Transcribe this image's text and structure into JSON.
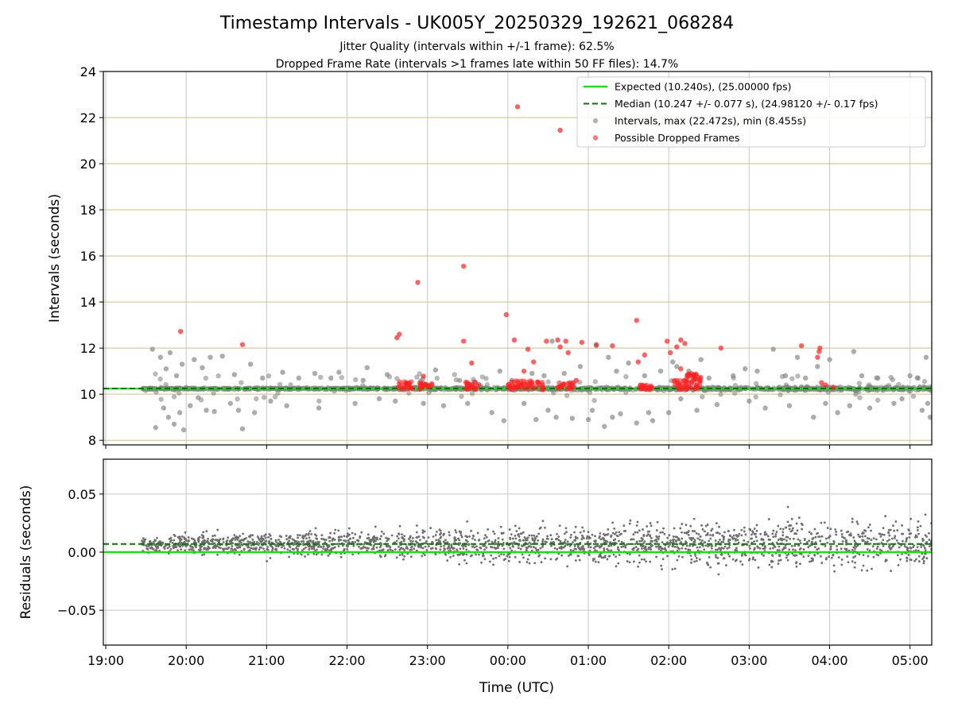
{
  "figure": {
    "title": "Timestamp Intervals - UK005Y_20250329_192621_068284",
    "subtitle_lines": [
      "Jitter Quality (intervals within +/-1 frame): 62.5%",
      "Dropped Frame Rate (intervals >1 frames late within 50 FF files): 14.7%"
    ]
  },
  "chart_data": [
    {
      "type": "scatter",
      "panel": "top",
      "ylabel": "Intervals (seconds)",
      "ylim": [
        7.8,
        24
      ],
      "yticks": [
        8,
        10,
        12,
        14,
        16,
        18,
        20,
        22,
        24
      ],
      "ytick_labels": [
        "8",
        "10",
        "12",
        "14",
        "16",
        "18",
        "20",
        "22",
        "24"
      ],
      "xlim": [
        -0.03,
        10.27
      ],
      "xticks": [
        0,
        1,
        2,
        3,
        4,
        5,
        6,
        7,
        8,
        9,
        10
      ],
      "xtick_labels": [
        "19:00",
        "20:00",
        "21:00",
        "22:00",
        "23:00",
        "00:00",
        "01:00",
        "02:00",
        "03:00",
        "04:00",
        "05:00"
      ],
      "x_units": "hours since 19:00 UTC",
      "grid": true,
      "legend_position": "top-right",
      "colors": {
        "expected": "#00ee00",
        "median": "#007a00",
        "intervals": "#808080",
        "dropped": "#ff2020",
        "hgrid": "#d4bf7a",
        "vgrid": "#c8c8c8"
      },
      "lines": [
        {
          "name": "Expected (10.240s), (25.00000 fps)",
          "y": 10.24,
          "style": "solid"
        },
        {
          "name": "Median (10.247 +/- 0.077 s), (24.98120 +/- 0.17 fps)",
          "y": 10.247,
          "style": "dashed"
        }
      ],
      "series": [
        {
          "name": "Intervals, max (22.472s), min (8.455s)",
          "x_start": 0.45,
          "x_end": 10.27,
          "baseline_y": 10.24,
          "points": [
            [
              0.58,
              11.95
            ],
            [
              0.62,
              8.55
            ],
            [
              0.68,
              11.6
            ],
            [
              0.72,
              9.4
            ],
            [
              0.75,
              11.1
            ],
            [
              0.78,
              9.0
            ],
            [
              0.8,
              11.8
            ],
            [
              0.85,
              8.7
            ],
            [
              0.88,
              10.8
            ],
            [
              0.92,
              9.2
            ],
            [
              0.95,
              11.3
            ],
            [
              0.97,
              8.45
            ],
            [
              1.05,
              9.5
            ],
            [
              1.1,
              11.5
            ],
            [
              1.15,
              9.85
            ],
            [
              1.2,
              11.15
            ],
            [
              1.25,
              9.3
            ],
            [
              1.3,
              11.6
            ],
            [
              1.35,
              9.25
            ],
            [
              1.45,
              11.65
            ],
            [
              1.55,
              9.6
            ],
            [
              1.6,
              10.85
            ],
            [
              1.65,
              9.3
            ],
            [
              1.7,
              8.5
            ],
            [
              1.8,
              11.3
            ],
            [
              1.85,
              9.2
            ],
            [
              1.95,
              10.7
            ],
            [
              2.05,
              9.7
            ],
            [
              2.2,
              10.95
            ],
            [
              2.25,
              9.5
            ],
            [
              2.4,
              10.7
            ],
            [
              2.6,
              10.9
            ],
            [
              2.65,
              9.4
            ],
            [
              2.8,
              10.7
            ],
            [
              2.9,
              10.95
            ],
            [
              3.1,
              9.6
            ],
            [
              3.2,
              10.6
            ],
            [
              3.25,
              11.15
            ],
            [
              3.4,
              9.8
            ],
            [
              3.5,
              10.85
            ],
            [
              3.6,
              9.7
            ],
            [
              3.65,
              10.2
            ],
            [
              3.75,
              10.3
            ],
            [
              3.95,
              9.6
            ],
            [
              4.1,
              11.05
            ],
            [
              4.2,
              9.5
            ],
            [
              4.4,
              10.6
            ],
            [
              4.5,
              9.6
            ],
            [
              4.6,
              10.5
            ],
            [
              4.8,
              9.2
            ],
            [
              4.9,
              11.0
            ],
            [
              4.95,
              8.85
            ],
            [
              5.05,
              10.6
            ],
            [
              5.2,
              9.6
            ],
            [
              5.3,
              10.9
            ],
            [
              5.35,
              8.9
            ],
            [
              5.45,
              10.8
            ],
            [
              5.5,
              9.3
            ],
            [
              5.55,
              12.3
            ],
            [
              5.6,
              9.0
            ],
            [
              5.7,
              10.9
            ],
            [
              5.8,
              8.95
            ],
            [
              5.9,
              11.2
            ],
            [
              6.0,
              8.9
            ],
            [
              6.05,
              9.3
            ],
            [
              6.1,
              12.1
            ],
            [
              6.2,
              8.6
            ],
            [
              6.25,
              11.6
            ],
            [
              6.3,
              9.0
            ],
            [
              6.35,
              11.0
            ],
            [
              6.4,
              9.15
            ],
            [
              6.5,
              11.35
            ],
            [
              6.6,
              8.75
            ],
            [
              6.7,
              10.8
            ],
            [
              6.75,
              9.2
            ],
            [
              6.8,
              8.85
            ],
            [
              6.9,
              11.0
            ],
            [
              7.0,
              9.2
            ],
            [
              7.05,
              11.4
            ],
            [
              7.1,
              11.2
            ],
            [
              7.15,
              9.8
            ],
            [
              7.25,
              11.0
            ],
            [
              7.35,
              9.3
            ],
            [
              7.4,
              11.5
            ],
            [
              7.5,
              10.7
            ],
            [
              7.6,
              9.55
            ],
            [
              7.8,
              10.8
            ],
            [
              7.95,
              11.1
            ],
            [
              8.0,
              9.7
            ],
            [
              8.1,
              11.0
            ],
            [
              8.2,
              9.4
            ],
            [
              8.3,
              11.95
            ],
            [
              8.45,
              10.8
            ],
            [
              8.5,
              9.5
            ],
            [
              8.6,
              11.6
            ],
            [
              8.7,
              10.7
            ],
            [
              8.8,
              9.0
            ],
            [
              8.85,
              11.2
            ],
            [
              8.95,
              9.6
            ],
            [
              9.0,
              11.5
            ],
            [
              9.1,
              9.2
            ],
            [
              9.25,
              9.5
            ],
            [
              9.3,
              11.85
            ],
            [
              9.4,
              10.8
            ],
            [
              9.5,
              9.4
            ],
            [
              9.6,
              10.7
            ],
            [
              9.8,
              9.6
            ],
            [
              9.9,
              9.8
            ],
            [
              10.0,
              10.8
            ],
            [
              10.1,
              10.7
            ],
            [
              10.15,
              9.3
            ],
            [
              10.2,
              11.6
            ],
            [
              10.25,
              9.0
            ],
            [
              10.22,
              9.6
            ]
          ]
        },
        {
          "name": "Possible Dropped Frames",
          "points": [
            [
              0.93,
              12.72
            ],
            [
              1.7,
              12.15
            ],
            [
              3.62,
              12.45
            ],
            [
              3.65,
              12.6
            ],
            [
              3.88,
              14.85
            ],
            [
              3.95,
              10.78
            ],
            [
              4.45,
              15.55
            ],
            [
              4.45,
              12.3
            ],
            [
              4.55,
              11.35
            ],
            [
              4.98,
              13.45
            ],
            [
              5.08,
              12.35
            ],
            [
              5.12,
              22.47
            ],
            [
              5.2,
              11.0
            ],
            [
              5.25,
              11.95
            ],
            [
              5.32,
              11.4
            ],
            [
              5.48,
              12.3
            ],
            [
              5.62,
              12.35
            ],
            [
              5.65,
              21.45
            ],
            [
              5.72,
              12.3
            ],
            [
              5.65,
              12.05
            ],
            [
              5.75,
              11.8
            ],
            [
              5.85,
              10.6
            ],
            [
              5.92,
              12.25
            ],
            [
              6.1,
              12.15
            ],
            [
              6.3,
              12.1
            ],
            [
              6.6,
              13.2
            ],
            [
              6.62,
              11.4
            ],
            [
              6.7,
              11.7
            ],
            [
              6.98,
              12.3
            ],
            [
              7.02,
              11.8
            ],
            [
              7.1,
              12.05
            ],
            [
              7.15,
              12.35
            ],
            [
              7.2,
              12.2
            ],
            [
              7.15,
              11.1
            ],
            [
              7.65,
              12.0
            ],
            [
              8.65,
              12.1
            ],
            [
              8.85,
              11.6
            ],
            [
              8.87,
              11.85
            ],
            [
              8.88,
              12.0
            ],
            [
              8.9,
              10.5
            ],
            [
              8.95,
              10.4
            ],
            [
              9.05,
              10.3
            ]
          ],
          "clusters": [
            {
              "x_from": 3.62,
              "x_to": 3.82,
              "y_from": 10.2,
              "y_to": 10.55
            },
            {
              "x_from": 3.9,
              "x_to": 4.07,
              "y_from": 10.2,
              "y_to": 10.5
            },
            {
              "x_from": 4.45,
              "x_to": 4.65,
              "y_from": 10.2,
              "y_to": 10.55
            },
            {
              "x_from": 5.0,
              "x_to": 5.45,
              "y_from": 10.2,
              "y_to": 10.6
            },
            {
              "x_from": 5.62,
              "x_to": 5.82,
              "y_from": 10.2,
              "y_to": 10.5
            },
            {
              "x_from": 6.62,
              "x_to": 6.8,
              "y_from": 10.2,
              "y_to": 10.4
            },
            {
              "x_from": 7.05,
              "x_to": 7.4,
              "y_from": 10.2,
              "y_to": 10.6
            },
            {
              "x_from": 7.2,
              "x_to": 7.4,
              "y_from": 10.6,
              "y_to": 10.9
            }
          ]
        }
      ]
    },
    {
      "type": "scatter",
      "panel": "bottom",
      "ylabel": "Residuals (seconds)",
      "xlabel": "Time (UTC)",
      "ylim": [
        -0.08,
        0.08
      ],
      "yticks": [
        -0.05,
        0.0,
        0.05
      ],
      "ytick_labels": [
        "−0.05",
        "0.00",
        "0.05"
      ],
      "xlim": [
        -0.03,
        10.27
      ],
      "xticks": [
        0,
        1,
        2,
        3,
        4,
        5,
        6,
        7,
        8,
        9,
        10
      ],
      "xtick_labels": [
        "19:00",
        "20:00",
        "21:00",
        "22:00",
        "23:00",
        "00:00",
        "01:00",
        "02:00",
        "03:00",
        "04:00",
        "05:00"
      ],
      "grid": true,
      "lines": [
        {
          "name": "Expected",
          "y": 0.0,
          "style": "solid"
        },
        {
          "name": "Median",
          "y": 0.007,
          "style": "dashed"
        }
      ],
      "series": [
        {
          "name": "Residuals",
          "x_start": 0.45,
          "x_end": 10.27,
          "count": 2200,
          "spread_start": 0.015,
          "spread_end": 0.045,
          "bias": 0.007
        }
      ]
    }
  ]
}
